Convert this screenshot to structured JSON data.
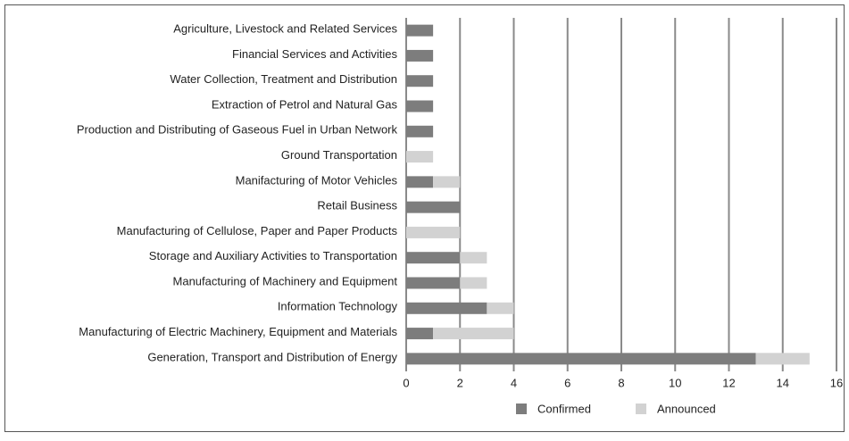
{
  "chart_data": {
    "type": "bar",
    "orientation": "horizontal",
    "stacked": true,
    "categories": [
      "Agriculture, Livestock and Related Services",
      "Financial Services and Activities",
      "Water Collection, Treatment and Distribution",
      "Extraction of Petrol and Natural Gas",
      "Production and Distributing of Gaseous Fuel in Urban Network",
      "Ground Transportation",
      "Manifacturing of Motor Vehicles",
      "Retail Business",
      "Manufacturing of Cellulose, Paper and Paper Products",
      "Storage and Auxiliary Activities to Transportation",
      "Manufacturing of Machinery and Equipment",
      "Information Technology",
      "Manufacturing of Electric Machinery, Equipment and Materials",
      "Generation, Transport and Distribution of Energy"
    ],
    "series": [
      {
        "name": "Confirmed",
        "color": "#7d7d7d",
        "values": [
          1,
          1,
          1,
          1,
          1,
          0,
          1,
          2,
          0,
          2,
          2,
          3,
          1,
          13
        ]
      },
      {
        "name": "Announced",
        "color": "#d2d2d2",
        "values": [
          0,
          0,
          0,
          0,
          0,
          1,
          1,
          0,
          2,
          1,
          1,
          1,
          3,
          2
        ]
      }
    ],
    "xlim": [
      0,
      16
    ],
    "xticks": [
      0,
      2,
      4,
      6,
      8,
      10,
      12,
      14,
      16
    ],
    "grid": true
  }
}
